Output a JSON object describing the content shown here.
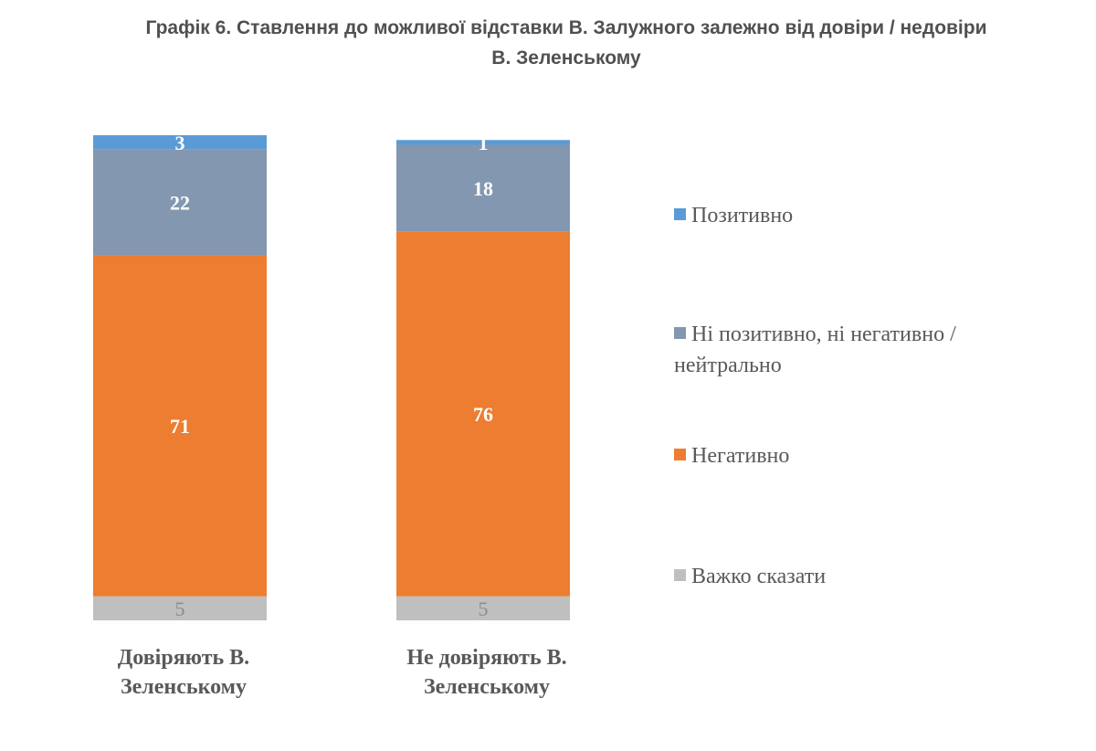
{
  "title": {
    "line1": "Графік 6. Ставлення до можливої відставки В. Залужного залежно від довіри / недовіри",
    "line2": "В. Зеленському"
  },
  "chart_data": {
    "type": "bar",
    "stacked": true,
    "orientation": "vertical",
    "ylim": [
      0,
      101
    ],
    "grid": false,
    "legend_position": "right",
    "categories": [
      [
        "Довіряють В.",
        "Зеленському"
      ],
      [
        "Не довіряють В.",
        "Зеленському"
      ]
    ],
    "series": [
      {
        "name": "Важко сказати",
        "color": "#bfbfbf",
        "values": [
          5,
          5
        ]
      },
      {
        "name": "Негативно",
        "color": "#ed7d31",
        "values": [
          71,
          76
        ]
      },
      {
        "name": "Ні позитивно, ні негативно / нейтрально",
        "color": "#8497b0",
        "values": [
          22,
          18
        ]
      },
      {
        "name": "Позитивно",
        "color": "#5b9bd5",
        "values": [
          3,
          1
        ]
      }
    ],
    "legend_order": [
      {
        "name": "Позитивно",
        "color": "#5b9bd5"
      },
      {
        "name": "Ні позитивно, ні негативно / нейтрально",
        "color": "#8497b0"
      },
      {
        "name": "Негативно",
        "color": "#ed7d31"
      },
      {
        "name": "Важко сказати",
        "color": "#bfbfbf"
      }
    ]
  }
}
